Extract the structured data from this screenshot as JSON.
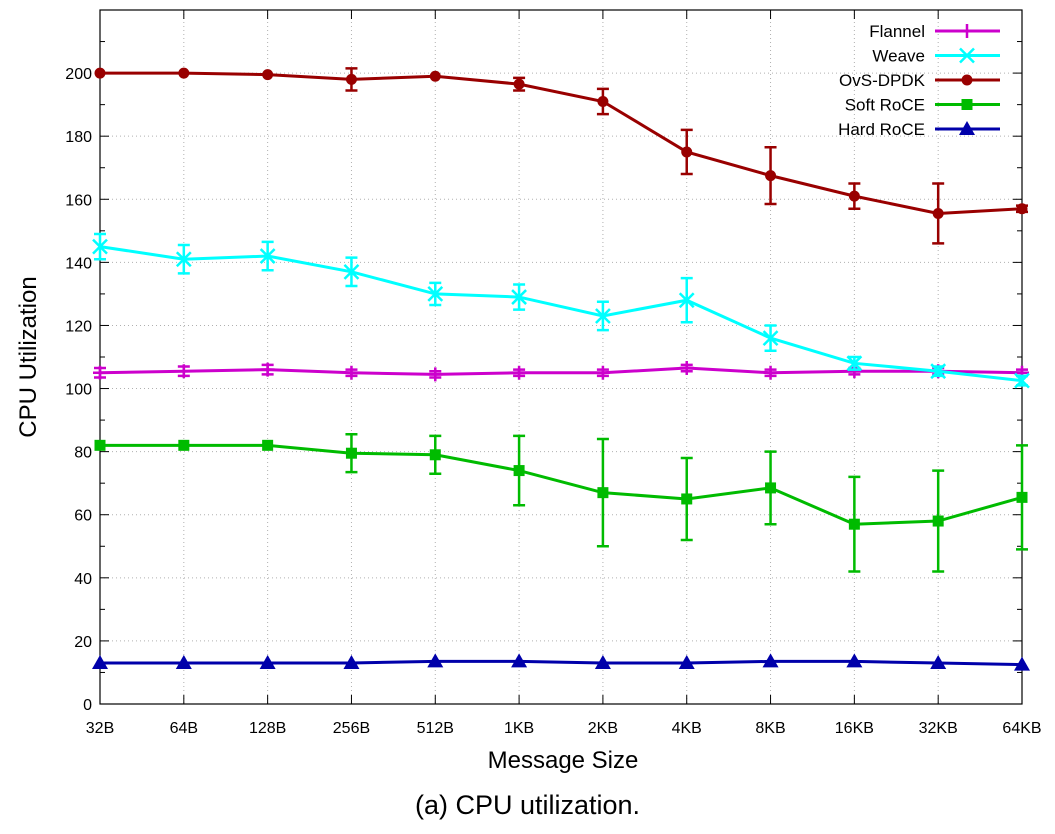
{
  "caption": "(a) CPU utilization.",
  "chart_data": {
    "type": "line",
    "xlabel": "Message Size",
    "ylabel": "CPU Utilization",
    "categories": [
      "32B",
      "64B",
      "128B",
      "256B",
      "512B",
      "1KB",
      "2KB",
      "4KB",
      "8KB",
      "16KB",
      "32KB",
      "64KB"
    ],
    "ylim": [
      0,
      220
    ],
    "yticks": [
      0,
      20,
      40,
      60,
      80,
      100,
      120,
      140,
      160,
      180,
      200
    ],
    "grid": true,
    "legend_position": "top-right",
    "error_bars": true,
    "series": [
      {
        "name": "Flannel",
        "color": "#cc00cc",
        "marker": "plus",
        "values": [
          105,
          105.5,
          106,
          105,
          104.5,
          105,
          105,
          106.5,
          105,
          105.5,
          105.5,
          105
        ],
        "err": [
          1.5,
          1.5,
          1.5,
          1,
          1,
          1,
          1,
          1,
          1,
          1,
          1,
          1
        ]
      },
      {
        "name": "Weave",
        "color": "#00ffff",
        "marker": "cross",
        "values": [
          145,
          141,
          142,
          137,
          130,
          129,
          123,
          128,
          116,
          108,
          105.5,
          102.5
        ],
        "err": [
          4,
          4.5,
          4.5,
          4.5,
          3.5,
          4,
          4.5,
          7,
          4,
          2,
          1.5,
          1.5
        ]
      },
      {
        "name": "OvS-DPDK",
        "color": "#990000",
        "marker": "circle",
        "values": [
          200,
          200,
          199.5,
          198,
          199,
          196.5,
          191,
          175,
          167.5,
          161,
          155.5,
          157
        ],
        "err": [
          0.5,
          0.5,
          0.5,
          3.5,
          0.5,
          2,
          4,
          7,
          9,
          4,
          9.5,
          1
        ]
      },
      {
        "name": "Soft RoCE",
        "color": "#00bb00",
        "marker": "square",
        "values": [
          82,
          82,
          82,
          79.5,
          79,
          74,
          67,
          65,
          68.5,
          57,
          58,
          65.5
        ],
        "err": [
          0.5,
          0.5,
          0.5,
          6,
          6,
          11,
          17,
          13,
          11.5,
          15,
          16,
          16.5
        ]
      },
      {
        "name": "Hard RoCE",
        "color": "#0000aa",
        "marker": "triangle",
        "values": [
          13,
          13,
          13,
          13,
          13.5,
          13.5,
          13,
          13,
          13.5,
          13.5,
          13,
          12.5
        ],
        "err": [
          0.5,
          0.5,
          0.5,
          0.5,
          0.5,
          0.5,
          0.5,
          0.5,
          0.5,
          0.5,
          0.5,
          0.5
        ]
      }
    ]
  }
}
